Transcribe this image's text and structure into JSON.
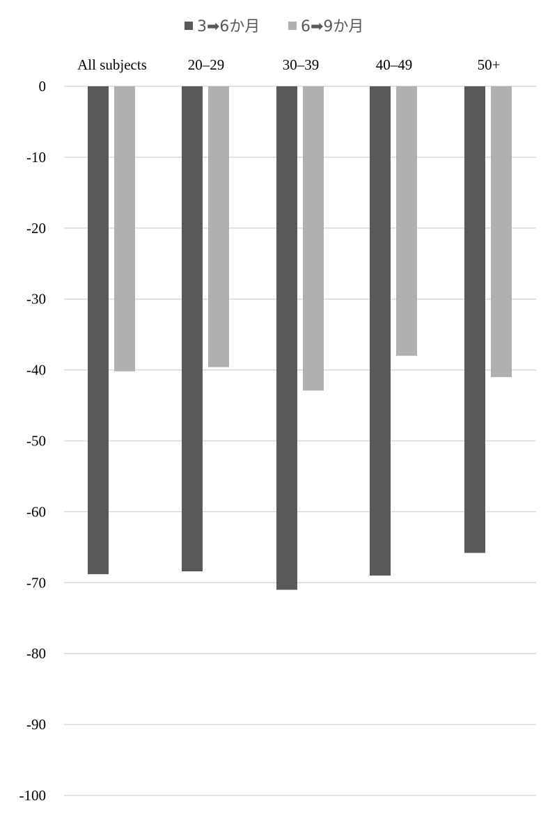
{
  "chart_data": {
    "type": "bar",
    "categories": [
      "All subjects",
      "20–29",
      "30–39",
      "40–49",
      "50+"
    ],
    "series": [
      {
        "name": "3➡6か月",
        "color": "#595959",
        "values": [
          -68.8,
          -68.4,
          -71.0,
          -69.0,
          -65.8
        ]
      },
      {
        "name": "6➡9か月",
        "color": "#b0b0b0",
        "values": [
          -40.2,
          -39.6,
          -42.9,
          -38.0,
          -41.0
        ]
      }
    ],
    "ylim": [
      -100,
      0
    ],
    "yticks": [
      0,
      -10,
      -20,
      -30,
      -40,
      -50,
      -60,
      -70,
      -80,
      -90,
      -100
    ],
    "grid": true,
    "legend_position": "top-center",
    "category_labels_position": "top"
  }
}
